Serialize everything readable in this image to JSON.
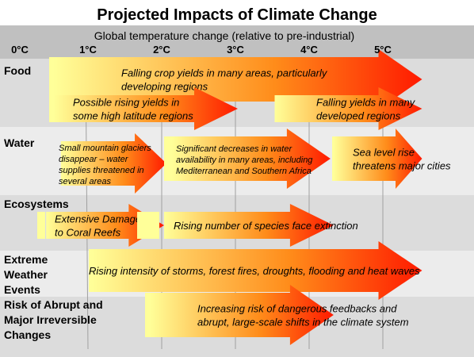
{
  "title": "Projected Impacts of Climate Change",
  "subtitle": "Global temperature change (relative to pre-industrial)",
  "axis": {
    "ticks": [
      "0°C",
      "1°C",
      "2°C",
      "3°C",
      "4°C",
      "5°C"
    ],
    "range_celsius": [
      0,
      5.5
    ]
  },
  "colors": {
    "header_band": "#c0c0c0",
    "band_dark": "#dcdcdc",
    "band_light": "#ececec",
    "gridline": "#a0a0a0",
    "arrow_start": "#ffff99",
    "arrow_mid": "#ff8c1a",
    "arrow_end": "#ff1a00"
  },
  "categories": [
    {
      "label_lines": [
        "Food"
      ],
      "impacts": [
        {
          "text_lines": [
            "Falling crop yields in many areas, particularly",
            "developing regions"
          ],
          "start_celsius": 0.5,
          "end_celsius": 5.5,
          "style": "large"
        },
        {
          "text_lines": [
            "Possible rising yields in",
            "some high latitude regions"
          ],
          "start_celsius": 0.5,
          "end_celsius": 3.0,
          "style": "large"
        },
        {
          "text_lines": [
            "Falling yields in many",
            "developed regions"
          ],
          "start_celsius": 3.5,
          "end_celsius": 5.5,
          "style": "large"
        }
      ]
    },
    {
      "label_lines": [
        "Water"
      ],
      "impacts": [
        {
          "text_lines": [
            "Small mountain glaciers",
            "disappear – water",
            "supplies threatened in",
            "several areas"
          ],
          "start_celsius": 0.6,
          "end_celsius": 2.0,
          "style": "small"
        },
        {
          "text_lines": [
            "Significant decreases in water",
            "availability in many areas, including",
            "Mediterranean and Southern Africa"
          ],
          "start_celsius": 2.0,
          "end_celsius": 4.3,
          "style": "small"
        },
        {
          "text_lines": [
            "Sea level rise",
            "threatens major cities"
          ],
          "start_celsius": 4.3,
          "end_celsius": 5.5,
          "style": "large"
        }
      ]
    },
    {
      "label_lines": [
        "Ecosystems"
      ],
      "impacts": [
        {
          "text_lines": [
            "Extensive Damage",
            "to Coral Reefs"
          ],
          "start_celsius": 0.4,
          "end_celsius": 2.0,
          "style": "large"
        },
        {
          "text_lines": [
            "Rising number of species face extinction"
          ],
          "start_celsius": 2.0,
          "end_celsius": 4.3,
          "style": "large"
        }
      ]
    },
    {
      "label_lines": [
        "Extreme",
        "Weather",
        "Events"
      ],
      "impacts": [
        {
          "text_lines": [
            "Rising intensity of storms, forest fires, droughts, flooding and heat waves"
          ],
          "start_celsius": 1.0,
          "end_celsius": 5.5,
          "style": "large"
        }
      ]
    },
    {
      "label_lines": [
        "Risk of Abrupt and",
        "Major Irreversible",
        "Changes"
      ],
      "impacts": [
        {
          "text_lines": [
            "Increasing risk of dangerous feedbacks and",
            "abrupt, large-scale shifts in the climate system"
          ],
          "start_celsius": 1.8,
          "end_celsius": 4.3,
          "style": "large"
        }
      ]
    }
  ]
}
